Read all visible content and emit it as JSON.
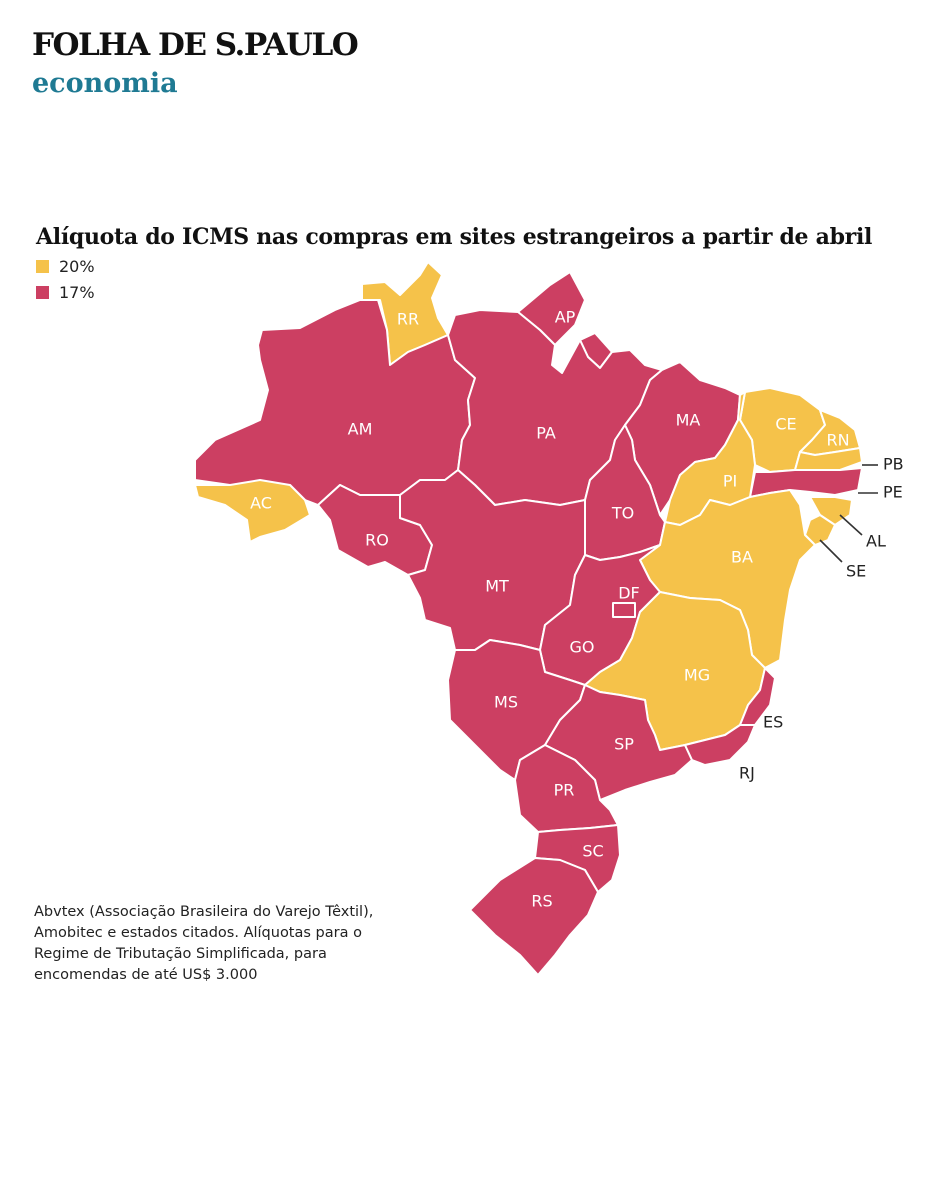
{
  "header": {
    "brand": "FOLHA DE S.PAULO",
    "section": "economia"
  },
  "map": {
    "title": "Alíquota do ICMS nas compras em sites estrangeiros a partir de abril",
    "legend": [
      {
        "label": "20%",
        "color": "#f5c24a"
      },
      {
        "label": "17%",
        "color": "#cc3f62"
      }
    ],
    "states": [
      {
        "code": "RR",
        "rate": "20%"
      },
      {
        "code": "AP",
        "rate": "17%"
      },
      {
        "code": "AM",
        "rate": "17%"
      },
      {
        "code": "PA",
        "rate": "17%"
      },
      {
        "code": "MA",
        "rate": "17%"
      },
      {
        "code": "CE",
        "rate": "20%"
      },
      {
        "code": "RN",
        "rate": "20%"
      },
      {
        "code": "PB",
        "rate": "20%"
      },
      {
        "code": "PE",
        "rate": "17%"
      },
      {
        "code": "AL",
        "rate": "20%"
      },
      {
        "code": "SE",
        "rate": "20%"
      },
      {
        "code": "PI",
        "rate": "20%"
      },
      {
        "code": "AC",
        "rate": "20%"
      },
      {
        "code": "RO",
        "rate": "17%"
      },
      {
        "code": "TO",
        "rate": "17%"
      },
      {
        "code": "BA",
        "rate": "20%"
      },
      {
        "code": "MT",
        "rate": "17%"
      },
      {
        "code": "DF",
        "rate": "17%"
      },
      {
        "code": "GO",
        "rate": "17%"
      },
      {
        "code": "MG",
        "rate": "20%"
      },
      {
        "code": "ES",
        "rate": "17%"
      },
      {
        "code": "MS",
        "rate": "17%"
      },
      {
        "code": "SP",
        "rate": "17%"
      },
      {
        "code": "RJ",
        "rate": "17%"
      },
      {
        "code": "PR",
        "rate": "17%"
      },
      {
        "code": "SC",
        "rate": "17%"
      },
      {
        "code": "RS",
        "rate": "17%"
      }
    ],
    "source": "Abvtex (Associação Brasileira do Varejo Têxtil), Amobitec e estados citados. Alíquotas para o Regime de Tributação Simplificada, para encomendas de até US$ 3.000"
  }
}
